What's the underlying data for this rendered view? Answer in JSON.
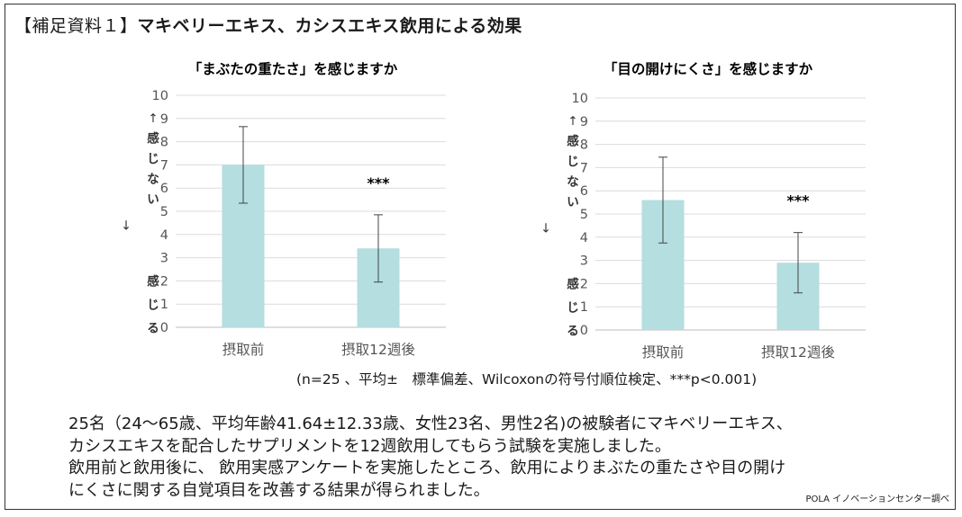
{
  "title": {
    "bracket": "【補足資料１】",
    "main": "マキベリーエキス、カシスエキス飲用による効果"
  },
  "chart_data": [
    {
      "type": "bar",
      "title": "「まぶたの重たさ」を感じますか",
      "categories": [
        "摂取前",
        "摂取12週後"
      ],
      "values": [
        7.0,
        3.4
      ],
      "error": [
        1.65,
        1.45
      ],
      "significance": [
        "",
        "***"
      ],
      "ylim": [
        0,
        10
      ],
      "yticks": [
        "0",
        "1",
        "2",
        "3",
        "4",
        "5",
        "6",
        "7",
        "8",
        "9",
        "10"
      ],
      "ylabel_top": [
        "↑",
        "感",
        "じ",
        "な",
        "い"
      ],
      "ylabel_mid": "↓",
      "ylabel_bottom": [
        "感",
        "じ",
        "る"
      ],
      "grid": true,
      "bar_color": "#b4dee0"
    },
    {
      "type": "bar",
      "title": "「目の開けにくさ」を感じますか",
      "categories": [
        "摂取前",
        "摂取12週後"
      ],
      "values": [
        5.6,
        2.9
      ],
      "error": [
        1.85,
        1.3
      ],
      "significance": [
        "",
        "***"
      ],
      "ylim": [
        0,
        10
      ],
      "yticks": [
        "0",
        "1",
        "2",
        "3",
        "4",
        "5",
        "6",
        "7",
        "8",
        "9",
        "10"
      ],
      "ylabel_top": [
        "↑",
        "感",
        "じ",
        "な",
        "い"
      ],
      "ylabel_mid": "↓",
      "ylabel_bottom": [
        "感",
        "じ",
        "る"
      ],
      "grid": true,
      "bar_color": "#b4dee0"
    }
  ],
  "footnote": "(n=25 、平均±　標準偏差、Wilcoxonの符号付順位検定、***p<0.001)",
  "body_lines": [
    "25名（24～65歳、平均年齢41.64±12.33歳、女性23名、男性2名)の被験者にマキベリーエキス、",
    "カシスエキスを配合したサプリメントを12週飲用してもらう試験を実施しました。",
    "飲用前と飲用後に、 飲用実感アンケートを実施したところ、飲用によりまぶたの重たさや目の開け",
    "にくさに関する自覚項目を改善する結果が得られました。"
  ],
  "credit": "POLA イノベーションセンター調べ"
}
